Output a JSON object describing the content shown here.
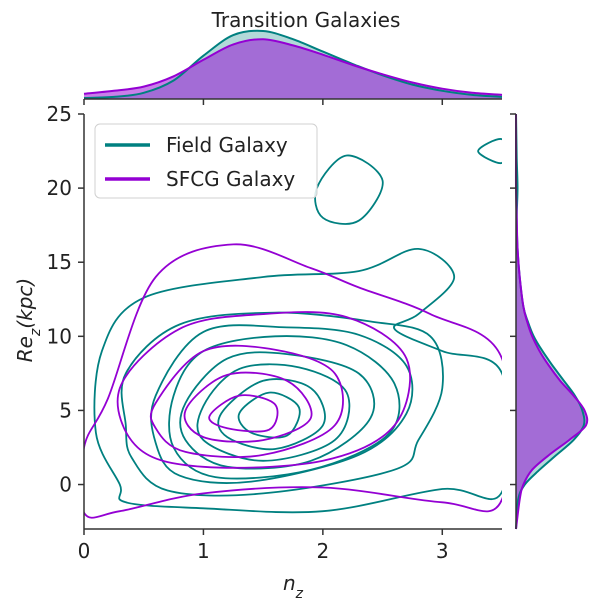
{
  "chart_data": {
    "type": "kde-joint",
    "title": "Transition Galaxies",
    "xlabel": "n_z",
    "ylabel": "Re_z(kpc)",
    "xlim": [
      0,
      3.5
    ],
    "ylim": [
      -3,
      25
    ],
    "x_ticks": [
      "0",
      "1",
      "2",
      "3"
    ],
    "y_ticks": [
      "0",
      "5",
      "10",
      "15",
      "20",
      "25"
    ],
    "legend_position": "upper-left",
    "legend": [
      "Field Galaxy",
      "SFCG Galaxy"
    ],
    "series": [
      {
        "name": "Field Galaxy",
        "color": "#008080",
        "center": [
          1.55,
          5.2
        ],
        "contours": [
          {
            "level": 1,
            "points": [
              [
                0.15,
                9.0
              ],
              [
                0.5,
                12.6
              ],
              [
                1.5,
                14.0
              ],
              [
                2.3,
                14.4
              ],
              [
                2.8,
                15.9
              ],
              [
                3.1,
                14.0
              ],
              [
                2.8,
                11.5
              ],
              [
                2.6,
                10.5
              ],
              [
                3.0,
                9.0
              ],
              [
                3.5,
                7.5
              ],
              [
                3.5,
                -0.5
              ],
              [
                3.0,
                -0.3
              ],
              [
                2.0,
                -1.8
              ],
              [
                1.0,
                -1.6
              ],
              [
                0.35,
                -1.2
              ],
              [
                0.3,
                0.0
              ],
              [
                0.1,
                3.5
              ]
            ]
          },
          {
            "level": 2,
            "points": [
              [
                0.35,
                7.5
              ],
              [
                0.8,
                10.8
              ],
              [
                1.6,
                11.6
              ],
              [
                2.4,
                11.0
              ],
              [
                2.9,
                10.0
              ],
              [
                3.0,
                6.5
              ],
              [
                2.8,
                3.0
              ],
              [
                2.6,
                1.0
              ],
              [
                1.5,
                -0.6
              ],
              [
                0.7,
                -0.4
              ],
              [
                0.4,
                1.8
              ],
              [
                0.35,
                4.0
              ]
            ]
          },
          {
            "level": 3,
            "points": [
              [
                0.6,
                6.0
              ],
              [
                1.0,
                10.3
              ],
              [
                1.7,
                10.6
              ],
              [
                2.3,
                10.1
              ],
              [
                2.7,
                8.0
              ],
              [
                2.7,
                4.8
              ],
              [
                2.3,
                2.0
              ],
              [
                1.4,
                0.2
              ],
              [
                0.8,
                0.6
              ],
              [
                0.6,
                2.8
              ]
            ]
          },
          {
            "level": 4,
            "points": [
              [
                0.75,
                6.0
              ],
              [
                1.0,
                9.0
              ],
              [
                1.6,
                10.0
              ],
              [
                2.2,
                9.4
              ],
              [
                2.6,
                6.8
              ],
              [
                2.55,
                3.4
              ],
              [
                1.9,
                1.0
              ],
              [
                1.1,
                0.5
              ],
              [
                0.75,
                2.5
              ]
            ]
          },
          {
            "level": 5,
            "points": [
              [
                0.85,
                5.5
              ],
              [
                1.2,
                8.5
              ],
              [
                1.7,
                8.8
              ],
              [
                2.3,
                7.5
              ],
              [
                2.4,
                4.5
              ],
              [
                1.9,
                1.6
              ],
              [
                1.2,
                1.2
              ],
              [
                0.85,
                3.0
              ]
            ]
          },
          {
            "level": 6,
            "points": [
              [
                1.0,
                5.3
              ],
              [
                1.3,
                7.8
              ],
              [
                1.8,
                7.9
              ],
              [
                2.2,
                6.2
              ],
              [
                2.1,
                3.0
              ],
              [
                1.5,
                1.6
              ],
              [
                1.0,
                3.0
              ]
            ]
          },
          {
            "level": 7,
            "points": [
              [
                1.15,
                4.8
              ],
              [
                1.5,
                7.0
              ],
              [
                1.9,
                6.5
              ],
              [
                2.0,
                4.0
              ],
              [
                1.6,
                2.4
              ],
              [
                1.2,
                3.2
              ]
            ]
          },
          {
            "level": 8,
            "points": [
              [
                1.3,
                4.8
              ],
              [
                1.55,
                6.2
              ],
              [
                1.8,
                5.2
              ],
              [
                1.7,
                3.3
              ],
              [
                1.4,
                3.5
              ]
            ]
          },
          {
            "level": 9,
            "points": [
              [
                1.95,
                20.0
              ],
              [
                2.2,
                22.2
              ],
              [
                2.5,
                20.5
              ],
              [
                2.3,
                17.8
              ],
              [
                2.0,
                18.0
              ]
            ]
          },
          {
            "level": 10,
            "points": [
              [
                3.3,
                22.5
              ],
              [
                3.5,
                23.3
              ],
              [
                3.5,
                21.7
              ]
            ]
          }
        ]
      },
      {
        "name": "SFCG Galaxy",
        "color": "#9400D3",
        "center": [
          1.3,
          4.8
        ],
        "contours": [
          {
            "level": 1,
            "points": [
              [
                0.0,
                2.5
              ],
              [
                0.2,
                5.8
              ],
              [
                0.6,
                14.0
              ],
              [
                1.25,
                16.2
              ],
              [
                1.9,
                14.6
              ],
              [
                2.3,
                13.3
              ],
              [
                2.9,
                11.5
              ],
              [
                3.5,
                8.5
              ],
              [
                3.5,
                -1.0
              ],
              [
                3.0,
                -1.2
              ],
              [
                2.0,
                -0.2
              ],
              [
                1.0,
                -0.6
              ],
              [
                0.3,
                -1.8
              ],
              [
                0.0,
                -1.9
              ]
            ]
          },
          {
            "level": 2,
            "points": [
              [
                0.3,
                6.5
              ],
              [
                0.8,
                10.5
              ],
              [
                1.5,
                11.5
              ],
              [
                2.2,
                11.3
              ],
              [
                2.7,
                8.5
              ],
              [
                2.6,
                4.0
              ],
              [
                2.0,
                1.6
              ],
              [
                1.0,
                1.2
              ],
              [
                0.45,
                2.5
              ]
            ]
          },
          {
            "level": 3,
            "points": [
              [
                0.6,
                5.5
              ],
              [
                1.0,
                9.0
              ],
              [
                1.6,
                9.1
              ],
              [
                2.1,
                7.5
              ],
              [
                2.1,
                4.0
              ],
              [
                1.5,
                2.0
              ],
              [
                0.85,
                2.2
              ],
              [
                0.6,
                3.8
              ]
            ]
          },
          {
            "level": 4,
            "points": [
              [
                0.85,
                5.0
              ],
              [
                1.2,
                7.4
              ],
              [
                1.7,
                7.0
              ],
              [
                1.9,
                4.5
              ],
              [
                1.5,
                3.0
              ],
              [
                1.0,
                3.2
              ]
            ]
          },
          {
            "level": 5,
            "points": [
              [
                1.05,
                4.6
              ],
              [
                1.3,
                6.0
              ],
              [
                1.6,
                5.4
              ],
              [
                1.55,
                3.7
              ],
              [
                1.2,
                3.8
              ]
            ]
          }
        ]
      }
    ],
    "marginal_x": {
      "x": [
        0,
        0.25,
        0.5,
        0.75,
        1.0,
        1.25,
        1.5,
        1.75,
        2.0,
        2.25,
        2.5,
        2.75,
        3.0,
        3.25,
        3.5
      ],
      "field": [
        0.01,
        0.02,
        0.06,
        0.18,
        0.42,
        0.62,
        0.66,
        0.58,
        0.46,
        0.34,
        0.23,
        0.14,
        0.08,
        0.04,
        0.02
      ],
      "sfcg": [
        0.05,
        0.08,
        0.12,
        0.22,
        0.38,
        0.53,
        0.58,
        0.52,
        0.43,
        0.33,
        0.24,
        0.16,
        0.1,
        0.06,
        0.04
      ]
    },
    "marginal_y": {
      "y": [
        -3,
        -1,
        0,
        1,
        2,
        3,
        4,
        5,
        6,
        7,
        8,
        9,
        10,
        11,
        12,
        14,
        16,
        18,
        20,
        22,
        25
      ],
      "field": [
        0.0,
        0.03,
        0.12,
        0.32,
        0.55,
        0.78,
        0.92,
        0.9,
        0.8,
        0.65,
        0.5,
        0.36,
        0.24,
        0.16,
        0.1,
        0.05,
        0.02,
        0.01,
        0.02,
        0.01,
        0.0
      ],
      "sfcg": [
        0.0,
        0.05,
        0.1,
        0.22,
        0.45,
        0.72,
        0.95,
        0.93,
        0.78,
        0.6,
        0.45,
        0.32,
        0.22,
        0.15,
        0.1,
        0.05,
        0.02,
        0.01,
        0.0,
        0.0,
        0.0
      ]
    }
  }
}
